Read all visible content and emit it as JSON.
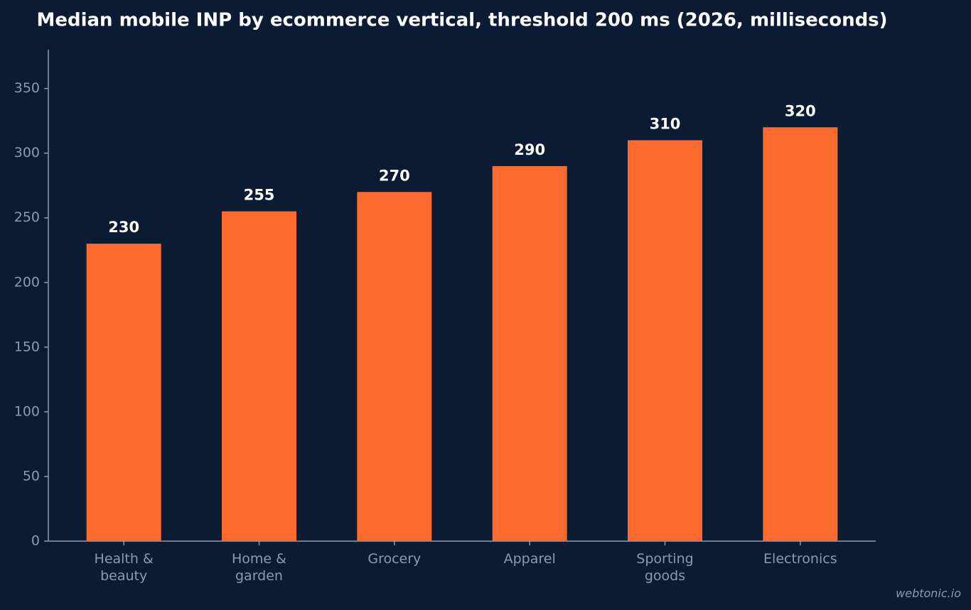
{
  "chart_data": {
    "type": "bar",
    "title": "Median mobile INP by ecommerce vertical, threshold 200 ms (2026, milliseconds)",
    "categories": [
      "Health & beauty",
      "Home & garden",
      "Grocery",
      "Apparel",
      "Sporting goods",
      "Electronics"
    ],
    "values": [
      230,
      255,
      270,
      290,
      310,
      320
    ],
    "color": "#ff6b2e",
    "ylim": [
      0,
      380
    ],
    "yticks": [
      0,
      50,
      100,
      150,
      200,
      250,
      300,
      350
    ],
    "grid": false,
    "watermark": "webtonic.io"
  }
}
